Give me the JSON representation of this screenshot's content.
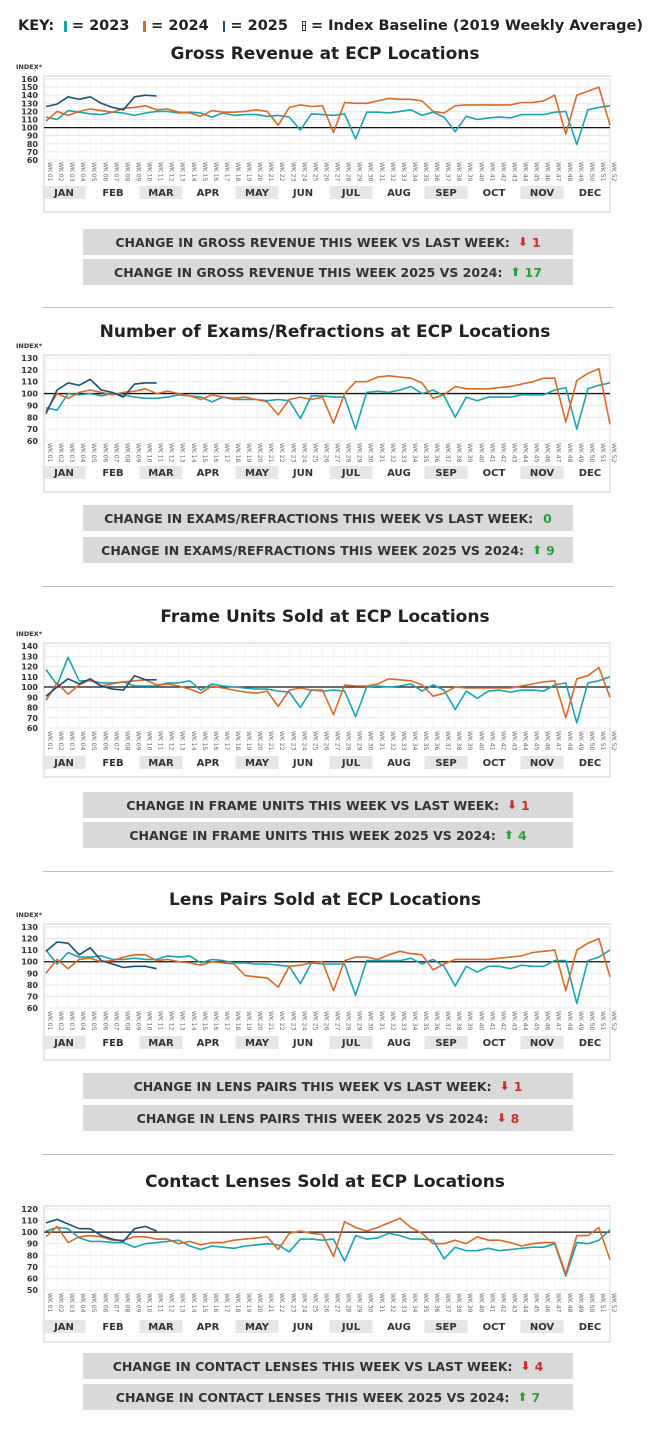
{
  "key": {
    "label": "KEY:",
    "items": [
      {
        "text": "= 2023",
        "color": "#1aa3b0"
      },
      {
        "text": "= 2024",
        "color": "#d9692a"
      },
      {
        "text": "= 2025",
        "color": "#1a4f7a"
      }
    ],
    "baseline_text": "= Index Baseline (2019 Weekly Average)"
  },
  "months": [
    "JAN",
    "FEB",
    "MAR",
    "APR",
    "MAY",
    "JUN",
    "JUL",
    "AUG",
    "SEP",
    "OCT",
    "NOV",
    "DEC"
  ],
  "week_labels": [
    "WK 01",
    "WK 02",
    "WK 03",
    "WK 04",
    "WK 05",
    "WK 06",
    "WK 07",
    "WK 08",
    "WK 09",
    "WK 10",
    "WK 11",
    "WK 12",
    "WK 13",
    "WK 14",
    "WK 15",
    "WK 16",
    "WK 17",
    "WK 18",
    "WK 19",
    "WK 20",
    "WK 21",
    "WK 22",
    "WK 23",
    "WK 24",
    "WK 25",
    "WK 26",
    "WK 27",
    "WK 28",
    "WK 29",
    "WK 30",
    "WK 31",
    "WK 32",
    "WK 33",
    "WK 34",
    "WK 35",
    "WK 36",
    "WK 37",
    "WK 38",
    "WK 39",
    "WK 40",
    "WK 41",
    "WK 42",
    "WK 43",
    "WK 44",
    "WK 45",
    "WK 46",
    "WK 47",
    "WK 48",
    "WK 49",
    "WK 50",
    "WK 51",
    "WK 52"
  ],
  "ylabel": "INDEX*",
  "chart_data": [
    {
      "type": "line",
      "title": "Gross Revenue at ECP Locations",
      "ylabel": "INDEX*",
      "ylim": [
        60,
        160
      ],
      "ticks": [
        60,
        70,
        80,
        90,
        100,
        110,
        120,
        130,
        140,
        150,
        160
      ],
      "baseline": 100,
      "x": "weeks 1-52",
      "series": [
        {
          "name": "2023",
          "color": "#1aa3b0",
          "values": [
            113,
            110,
            121,
            119,
            117,
            116,
            119,
            118,
            115,
            118,
            120,
            120,
            118,
            119,
            118,
            113,
            118,
            115,
            116,
            116,
            114,
            115,
            113,
            97,
            117,
            116,
            115,
            117,
            86,
            119,
            119,
            118,
            120,
            122,
            115,
            119,
            113,
            95,
            114,
            110,
            112,
            113,
            112,
            116,
            116,
            116,
            119,
            120,
            79,
            122,
            125,
            127
          ]
        },
        {
          "name": "2024",
          "color": "#d9692a",
          "values": [
            108,
            120,
            115,
            120,
            123,
            121,
            119,
            124,
            125,
            127,
            122,
            123,
            119,
            118,
            114,
            121,
            119,
            119,
            120,
            122,
            120,
            103,
            125,
            128,
            126,
            127,
            94,
            131,
            130,
            130,
            133,
            136,
            135,
            135,
            133,
            120,
            118,
            127,
            128,
            128,
            128,
            128,
            128,
            131,
            131,
            133,
            140,
            92,
            140,
            145,
            150,
            103
          ]
        },
        {
          "name": "2025",
          "color": "#1a4f7a",
          "values": [
            126,
            129,
            138,
            135,
            138,
            130,
            125,
            122,
            138,
            140,
            139
          ]
        }
      ]
    },
    {
      "type": "line",
      "title": "Number of Exams/Refractions at ECP Locations",
      "ylabel": "INDEX*",
      "ylim": [
        60,
        130
      ],
      "ticks": [
        60,
        70,
        80,
        90,
        100,
        110,
        120,
        130
      ],
      "baseline": 100,
      "x": "weeks 1-52",
      "series": [
        {
          "name": "2023",
          "color": "#1aa3b0",
          "values": [
            88,
            86,
            100,
            99,
            100,
            98,
            100,
            99,
            97,
            96,
            96,
            97,
            99,
            98,
            97,
            93,
            97,
            95,
            95,
            95,
            94,
            95,
            94,
            79,
            98,
            98,
            97,
            97,
            70,
            101,
            102,
            101,
            103,
            106,
            100,
            103,
            98,
            80,
            97,
            94,
            97,
            97,
            97,
            99,
            99,
            99,
            103,
            105,
            70,
            104,
            107,
            109
          ]
        },
        {
          "name": "2024",
          "color": "#d9692a",
          "values": [
            85,
            100,
            96,
            101,
            103,
            101,
            99,
            101,
            102,
            104,
            100,
            102,
            100,
            98,
            95,
            99,
            97,
            96,
            97,
            95,
            93,
            82,
            95,
            97,
            95,
            97,
            75,
            100,
            110,
            110,
            114,
            115,
            114,
            113,
            109,
            96,
            99,
            106,
            104,
            104,
            104,
            105,
            106,
            108,
            110,
            113,
            113,
            76,
            111,
            117,
            121,
            74
          ]
        },
        {
          "name": "2025",
          "color": "#1a4f7a",
          "values": [
            83,
            103,
            109,
            107,
            112,
            103,
            101,
            97,
            108,
            109,
            109
          ]
        }
      ]
    },
    {
      "type": "line",
      "title": "Frame Units Sold at ECP Locations",
      "ylabel": "INDEX*",
      "ylim": [
        60,
        140
      ],
      "ticks": [
        60,
        70,
        80,
        90,
        100,
        110,
        120,
        130,
        140
      ],
      "baseline": 100,
      "x": "weeks 1-52",
      "series": [
        {
          "name": "2023",
          "color": "#1aa3b0",
          "values": [
            117,
            102,
            129,
            106,
            106,
            104,
            104,
            105,
            101,
            101,
            101,
            104,
            104,
            106,
            97,
            103,
            101,
            100,
            99,
            98,
            98,
            96,
            95,
            80,
            97,
            96,
            97,
            96,
            71,
            100,
            101,
            100,
            101,
            103,
            96,
            102,
            97,
            78,
            96,
            89,
            96,
            97,
            95,
            97,
            97,
            96,
            102,
            104,
            65,
            104,
            106,
            110
          ]
        },
        {
          "name": "2024",
          "color": "#d9692a",
          "values": [
            87,
            104,
            93,
            102,
            107,
            101,
            103,
            105,
            106,
            107,
            102,
            103,
            101,
            98,
            94,
            101,
            99,
            97,
            95,
            94,
            96,
            81,
            97,
            99,
            97,
            97,
            73,
            102,
            101,
            101,
            103,
            108,
            107,
            106,
            102,
            91,
            94,
            100,
            99,
            99,
            99,
            99,
            99,
            101,
            103,
            105,
            106,
            70,
            108,
            111,
            119,
            90
          ]
        },
        {
          "name": "2025",
          "color": "#1a4f7a",
          "values": [
            91,
            100,
            108,
            103,
            108,
            101,
            98,
            97,
            111,
            107,
            107
          ]
        }
      ]
    },
    {
      "type": "line",
      "title": "Lens Pairs Sold at ECP Locations",
      "ylabel": "INDEX*",
      "ylim": [
        60,
        130
      ],
      "ticks": [
        60,
        70,
        80,
        90,
        100,
        110,
        120,
        130
      ],
      "baseline": 100,
      "x": "weeks 1-52",
      "series": [
        {
          "name": "2023",
          "color": "#1aa3b0",
          "values": [
            110,
            98,
            108,
            104,
            104,
            105,
            102,
            102,
            103,
            102,
            102,
            105,
            104,
            105,
            99,
            102,
            101,
            99,
            99,
            98,
            98,
            97,
            96,
            81,
            99,
            98,
            98,
            98,
            71,
            101,
            101,
            101,
            101,
            103,
            98,
            102,
            96,
            79,
            96,
            91,
            96,
            96,
            94,
            97,
            96,
            96,
            101,
            101,
            64,
            101,
            104,
            110
          ]
        },
        {
          "name": "2024",
          "color": "#d9692a",
          "values": [
            90,
            102,
            94,
            102,
            103,
            100,
            101,
            104,
            106,
            106,
            101,
            102,
            100,
            99,
            97,
            100,
            99,
            98,
            88,
            87,
            86,
            78,
            96,
            97,
            99,
            100,
            75,
            101,
            104,
            104,
            102,
            106,
            109,
            107,
            106,
            93,
            98,
            102,
            102,
            102,
            102,
            103,
            104,
            105,
            108,
            109,
            110,
            75,
            110,
            116,
            120,
            87
          ]
        },
        {
          "name": "2025",
          "color": "#1a4f7a",
          "values": [
            109,
            117,
            116,
            106,
            112,
            101,
            98,
            95,
            96,
            96,
            94
          ]
        }
      ]
    },
    {
      "type": "line",
      "title": "Contact Lenses Sold at ECP Locations",
      "ylabel": "",
      "ylim": [
        50,
        120
      ],
      "ticks": [
        50,
        60,
        70,
        80,
        90,
        100,
        110,
        120
      ],
      "baseline": 100,
      "x": "weeks 1-52",
      "series": [
        {
          "name": "2023",
          "color": "#1aa3b0",
          "values": [
            101,
            104,
            103,
            95,
            92,
            92,
            91,
            91,
            87,
            90,
            91,
            92,
            93,
            88,
            85,
            88,
            87,
            86,
            88,
            89,
            90,
            89,
            83,
            94,
            94,
            93,
            94,
            75,
            97,
            94,
            95,
            99,
            97,
            94,
            94,
            93,
            77,
            87,
            84,
            84,
            86,
            84,
            85,
            86,
            87,
            87,
            90,
            62,
            91,
            90,
            93,
            102
          ]
        },
        {
          "name": "2024",
          "color": "#d9692a",
          "values": [
            96,
            105,
            91,
            96,
            97,
            96,
            93,
            93,
            96,
            96,
            94,
            94,
            90,
            92,
            89,
            91,
            91,
            93,
            94,
            95,
            96,
            85,
            99,
            101,
            99,
            98,
            79,
            109,
            104,
            101,
            104,
            108,
            112,
            104,
            99,
            90,
            90,
            93,
            90,
            96,
            93,
            93,
            91,
            88,
            90,
            91,
            91,
            64,
            97,
            97,
            104,
            76
          ]
        },
        {
          "name": "2025",
          "color": "#1a4f7a",
          "values": [
            108,
            111,
            107,
            103,
            103,
            97,
            94,
            92,
            103,
            105,
            101
          ]
        }
      ]
    }
  ],
  "stats": [
    [
      {
        "text": "CHANGE IN GROSS REVENUE THIS WEEK VS LAST WEEK:",
        "arrow": "⬇",
        "value": "1",
        "dir": "down"
      },
      {
        "text": "CHANGE IN GROSS REVENUE THIS WEEK 2025 VS 2024:",
        "arrow": "⬆",
        "value": "17",
        "dir": "up"
      }
    ],
    [
      {
        "text": "CHANGE IN EXAMS/REFRACTIONS THIS WEEK VS LAST WEEK:",
        "arrow": "",
        "value": "0",
        "dir": "zero"
      },
      {
        "text": "CHANGE IN EXAMS/REFRACTIONS THIS WEEK 2025 VS 2024:",
        "arrow": "⬆",
        "value": "9",
        "dir": "up"
      }
    ],
    [
      {
        "text": "CHANGE IN FRAME UNITS THIS WEEK VS LAST WEEK:",
        "arrow": "⬇",
        "value": "1",
        "dir": "down"
      },
      {
        "text": "CHANGE IN FRAME UNITS THIS WEEK 2025 VS 2024:",
        "arrow": "⬆",
        "value": "4",
        "dir": "up"
      }
    ],
    [
      {
        "text": "CHANGE IN LENS PAIRS THIS WEEK VS LAST WEEK:",
        "arrow": "⬇",
        "value": "1",
        "dir": "down"
      },
      {
        "text": "CHANGE IN LENS PAIRS THIS WEEK 2025 VS 2024:",
        "arrow": "⬇",
        "value": "8",
        "dir": "down"
      }
    ],
    [
      {
        "text": "CHANGE IN CONTACT LENSES THIS WEEK VS LAST WEEK:",
        "arrow": "⬇",
        "value": "4",
        "dir": "down"
      },
      {
        "text": "CHANGE IN CONTACT LENSES THIS WEEK 2025 VS 2024:",
        "arrow": "⬆",
        "value": "7",
        "dir": "up"
      }
    ]
  ]
}
